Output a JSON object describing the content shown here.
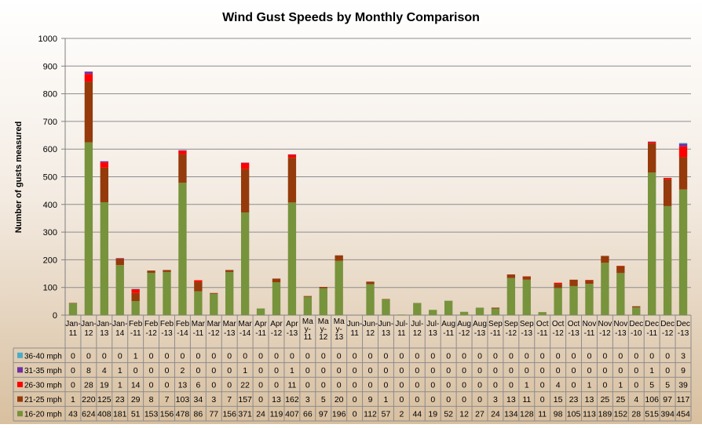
{
  "chart_data": {
    "type": "bar",
    "stacked": true,
    "title": "Wind Gust Speeds by Monthly Comparison",
    "ylabel": "Number of gusts measured",
    "xlabel": "",
    "ylim": [
      0,
      1000
    ],
    "yticks": [
      0,
      100,
      200,
      300,
      400,
      500,
      600,
      700,
      800,
      900,
      1000
    ],
    "grid": true,
    "legend": "data-table",
    "categories": [
      "Jan-11",
      "Jan-12",
      "Jan-13",
      "Jan-14",
      "Feb-11",
      "Feb-12",
      "Feb-13",
      "Feb-14",
      "Mar-11",
      "Mar-12",
      "Mar-13",
      "Mar-14",
      "Apr-11",
      "Apr-12",
      "Apr-13",
      "May-11",
      "May-12",
      "May-13",
      "Jun-11",
      "Jun-12",
      "Jun-13",
      "Jul-11",
      "Jul-12",
      "Jul-13",
      "Aug-11",
      "Aug-12",
      "Aug-13",
      "Sep-11",
      "Sep-12",
      "Sep-13",
      "Oct-11",
      "Oct-12",
      "Oct-13",
      "Nov-11",
      "Nov-12",
      "Nov-13",
      "Dec-10",
      "Dec-11",
      "Dec-12",
      "Dec-13"
    ],
    "category_lines": [
      [
        "Jan-",
        "11"
      ],
      [
        "Jan-",
        "12"
      ],
      [
        "Jan-",
        "13"
      ],
      [
        "Jan-",
        "14"
      ],
      [
        "Feb",
        "-11"
      ],
      [
        "Feb",
        "-12"
      ],
      [
        "Feb",
        "-13"
      ],
      [
        "Feb",
        "-14"
      ],
      [
        "Mar",
        "-11"
      ],
      [
        "Mar",
        "-12"
      ],
      [
        "Mar",
        "-13"
      ],
      [
        "Mar",
        "-14"
      ],
      [
        "Apr",
        "-11"
      ],
      [
        "Apr",
        "-12"
      ],
      [
        "Apr",
        "-13"
      ],
      [
        "Ma",
        "y-",
        "11"
      ],
      [
        "Ma",
        "y-",
        "12"
      ],
      [
        "Ma",
        "y-",
        "13"
      ],
      [
        "Jun-",
        "11"
      ],
      [
        "Jun-",
        "12"
      ],
      [
        "Jun-",
        "13"
      ],
      [
        "Jul-",
        "11"
      ],
      [
        "Jul-",
        "12"
      ],
      [
        "Jul-",
        "13"
      ],
      [
        "Aug",
        "-11"
      ],
      [
        "Aug",
        "-12"
      ],
      [
        "Aug",
        "-13"
      ],
      [
        "Sep",
        "-11"
      ],
      [
        "Sep",
        "-12"
      ],
      [
        "Sep",
        "-13"
      ],
      [
        "Oct",
        "-11"
      ],
      [
        "Oct",
        "-12"
      ],
      [
        "Oct",
        "-13"
      ],
      [
        "Nov",
        "-11"
      ],
      [
        "Nov",
        "-12"
      ],
      [
        "Nov",
        "-13"
      ],
      [
        "Dec",
        "-10"
      ],
      [
        "Dec",
        "-11"
      ],
      [
        "Dec",
        "-12"
      ],
      [
        "Dec",
        "-13"
      ]
    ],
    "series": [
      {
        "name": "16-20 mph",
        "color": "#77933c",
        "values": [
          43,
          624,
          408,
          181,
          51,
          153,
          156,
          478,
          86,
          77,
          156,
          371,
          24,
          119,
          407,
          66,
          97,
          196,
          0,
          112,
          57,
          2,
          44,
          19,
          52,
          12,
          27,
          24,
          134,
          128,
          11,
          98,
          105,
          113,
          189,
          152,
          28,
          515,
          394,
          454
        ]
      },
      {
        "name": "21-25 mph",
        "color": "#953a0b",
        "values": [
          1,
          220,
          125,
          23,
          29,
          8,
          7,
          103,
          34,
          3,
          7,
          157,
          0,
          13,
          162,
          3,
          5,
          20,
          0,
          9,
          1,
          0,
          0,
          0,
          0,
          0,
          0,
          3,
          13,
          11,
          0,
          15,
          23,
          13,
          25,
          25,
          4,
          106,
          97,
          117
        ]
      },
      {
        "name": "26-30 mph",
        "color": "#ff0000",
        "values": [
          0,
          28,
          19,
          1,
          14,
          0,
          0,
          13,
          6,
          0,
          0,
          22,
          0,
          0,
          11,
          0,
          0,
          0,
          0,
          0,
          0,
          0,
          0,
          0,
          0,
          0,
          0,
          0,
          0,
          1,
          0,
          4,
          0,
          1,
          0,
          1,
          0,
          5,
          5,
          39
        ]
      },
      {
        "name": "31-35 mph",
        "color": "#7030a0",
        "values": [
          0,
          8,
          4,
          1,
          0,
          0,
          0,
          2,
          0,
          0,
          0,
          1,
          0,
          0,
          1,
          0,
          0,
          0,
          0,
          0,
          0,
          0,
          0,
          0,
          0,
          0,
          0,
          0,
          0,
          0,
          0,
          0,
          0,
          0,
          0,
          0,
          0,
          1,
          0,
          9
        ]
      },
      {
        "name": "36-40 mph",
        "color": "#4bacc6",
        "values": [
          0,
          0,
          0,
          0,
          1,
          0,
          0,
          0,
          0,
          0,
          0,
          0,
          0,
          0,
          0,
          0,
          0,
          0,
          0,
          0,
          0,
          0,
          0,
          0,
          0,
          0,
          0,
          0,
          0,
          0,
          0,
          0,
          0,
          0,
          0,
          0,
          0,
          0,
          0,
          3
        ]
      }
    ]
  }
}
